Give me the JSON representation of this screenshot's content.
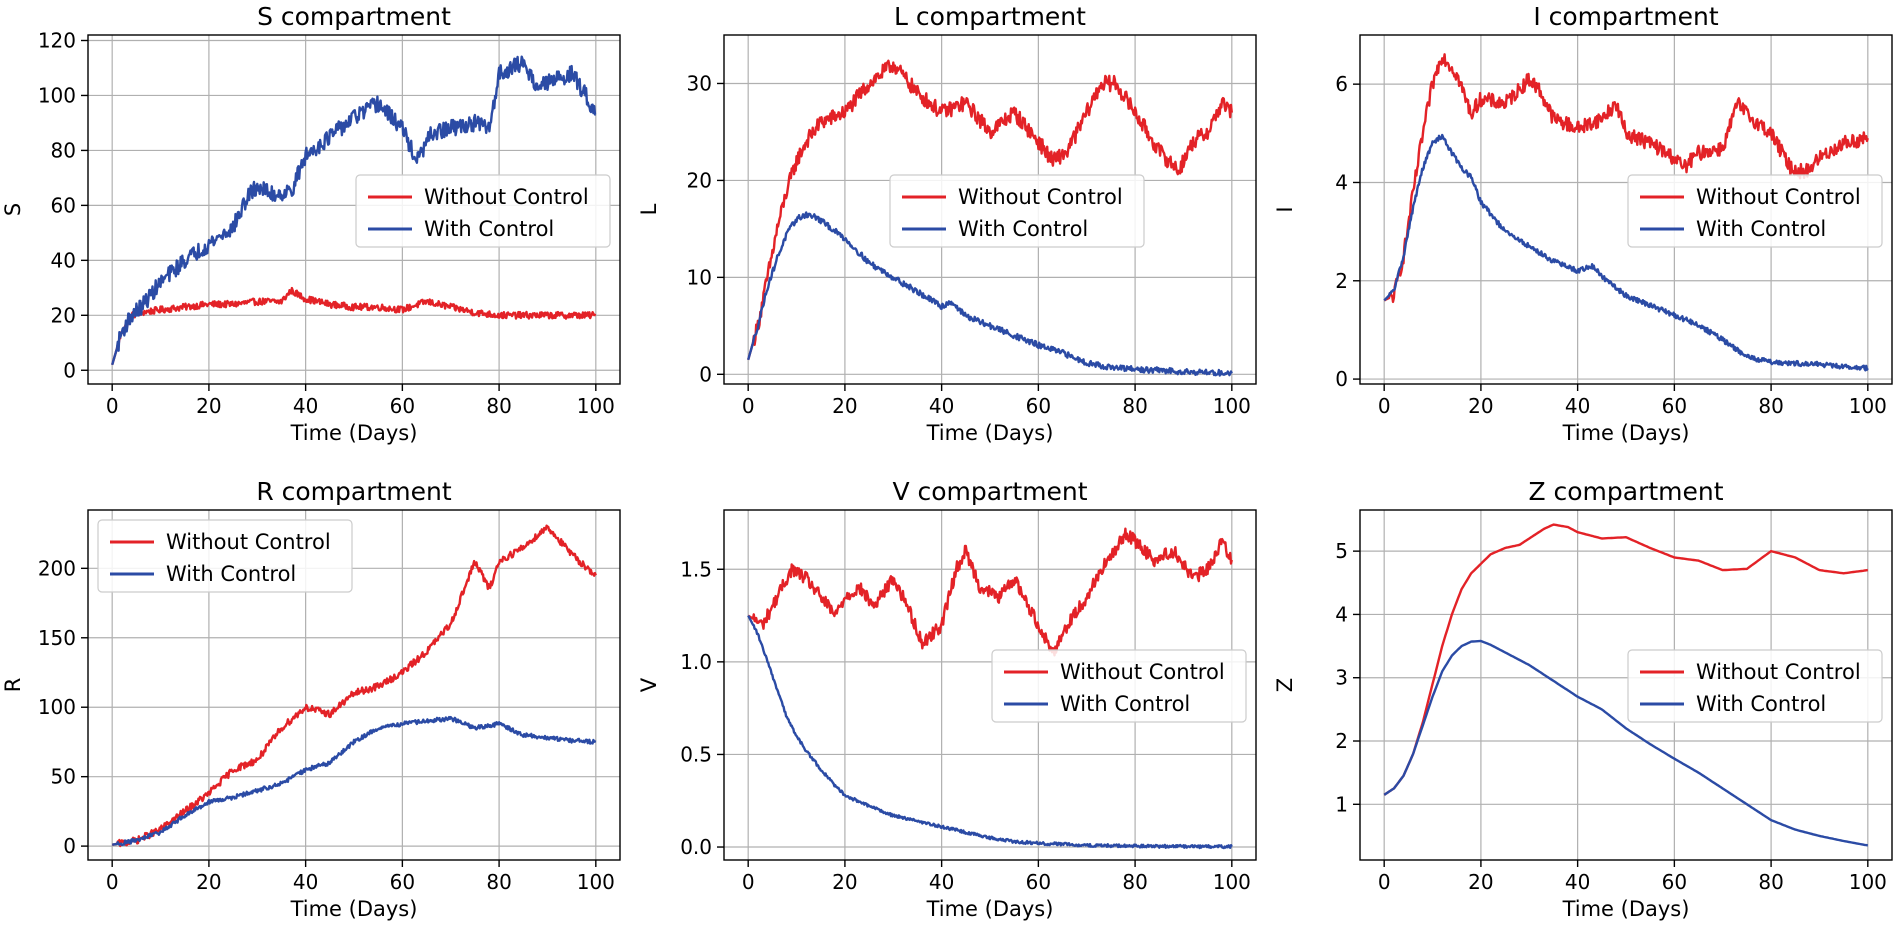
{
  "colors": {
    "without_control": "#e32227",
    "with_control": "#2b4ba5",
    "grid": "#b0b0b0"
  },
  "chart_data": [
    {
      "type": "line",
      "title": "S compartment",
      "xlabel": "Time (Days)",
      "ylabel": "S",
      "xlim": [
        -5,
        105
      ],
      "ylim": [
        -5,
        122
      ],
      "xticks": [
        0,
        20,
        40,
        60,
        80,
        100
      ],
      "xtick_labels": [
        "0",
        "20",
        "40",
        "60",
        "80",
        "100"
      ],
      "yticks": [
        0,
        20,
        40,
        60,
        80,
        100,
        120
      ],
      "ytick_labels": [
        "0",
        "20",
        "40",
        "60",
        "80",
        "100",
        "120"
      ],
      "legend": {
        "position": "center-right",
        "entries": [
          "Without Control",
          "With Control"
        ]
      },
      "noise": [
        1.2,
        3.0
      ],
      "series": [
        {
          "name": "Without Control",
          "x": [
            0,
            2,
            4,
            6,
            10,
            15,
            20,
            25,
            30,
            35,
            37,
            40,
            45,
            50,
            55,
            60,
            65,
            70,
            75,
            80,
            85,
            90,
            95,
            100
          ],
          "y": [
            2,
            14,
            20,
            21,
            22,
            23,
            24,
            24,
            25,
            25,
            29,
            26,
            24,
            23,
            23,
            22,
            25,
            23,
            21,
            20,
            20,
            20,
            20,
            20
          ]
        },
        {
          "name": "With Control",
          "x": [
            0,
            2,
            4,
            6,
            10,
            15,
            20,
            25,
            28,
            30,
            33,
            37,
            40,
            45,
            50,
            55,
            60,
            63,
            66,
            70,
            75,
            78,
            80,
            85,
            88,
            92,
            95,
            98,
            100
          ],
          "y": [
            2,
            14,
            20,
            23,
            32,
            40,
            46,
            52,
            63,
            67,
            64,
            65,
            78,
            85,
            92,
            97,
            88,
            76,
            86,
            88,
            90,
            88,
            108,
            112,
            103,
            106,
            108,
            100,
            93
          ]
        }
      ]
    },
    {
      "type": "line",
      "title": "L compartment",
      "xlabel": "Time (Days)",
      "ylabel": "L",
      "xlim": [
        -5,
        105
      ],
      "ylim": [
        -1,
        35
      ],
      "xticks": [
        0,
        20,
        40,
        60,
        80,
        100
      ],
      "xtick_labels": [
        "0",
        "20",
        "40",
        "60",
        "80",
        "100"
      ],
      "yticks": [
        0,
        10,
        20,
        30
      ],
      "ytick_labels": [
        "0",
        "10",
        "20",
        "30"
      ],
      "legend": {
        "position": "upper-right",
        "entries": [
          "Without Control",
          "With Control"
        ]
      },
      "noise": [
        0.8,
        0.3
      ],
      "series": [
        {
          "name": "Without Control",
          "x": [
            0,
            2,
            4,
            6,
            8,
            10,
            12,
            15,
            20,
            25,
            30,
            35,
            40,
            45,
            50,
            55,
            60,
            63,
            66,
            70,
            73,
            76,
            80,
            85,
            89,
            92,
            95,
            98,
            100
          ],
          "y": [
            1.5,
            5,
            10,
            15,
            19,
            22,
            24,
            26,
            27,
            30,
            32,
            29,
            27,
            28,
            25,
            27,
            24,
            22,
            23,
            27,
            30,
            30,
            27,
            23,
            21,
            24,
            25,
            28,
            27
          ]
        },
        {
          "name": "With Control",
          "x": [
            0,
            2,
            4,
            6,
            8,
            10,
            12,
            14,
            16,
            20,
            25,
            30,
            35,
            40,
            42,
            45,
            50,
            55,
            60,
            65,
            70,
            75,
            80,
            90,
            100
          ],
          "y": [
            1.5,
            5,
            9,
            12,
            14.5,
            16,
            16.5,
            16.2,
            15.5,
            14,
            11.5,
            10,
            8.5,
            7,
            7.5,
            6,
            5,
            4,
            3,
            2.2,
            1.2,
            0.7,
            0.5,
            0.3,
            0.1
          ]
        }
      ]
    },
    {
      "type": "line",
      "title": "I compartment",
      "xlabel": "Time (Days)",
      "ylabel": "I",
      "xlim": [
        -5,
        105
      ],
      "ylim": [
        -0.1,
        7.0
      ],
      "xticks": [
        0,
        20,
        40,
        60,
        80,
        100
      ],
      "xtick_labels": [
        "0",
        "20",
        "40",
        "60",
        "80",
        "100"
      ],
      "yticks": [
        0,
        2,
        4,
        6
      ],
      "ytick_labels": [
        "0",
        "2",
        "4",
        "6"
      ],
      "legend": {
        "position": "center-right",
        "entries": [
          "Without Control",
          "With Control"
        ]
      },
      "noise": [
        0.15,
        0.05
      ],
      "series": [
        {
          "name": "Without Control",
          "x": [
            0,
            2,
            4,
            6,
            8,
            10,
            12,
            15,
            18,
            20,
            25,
            30,
            32,
            35,
            40,
            45,
            48,
            50,
            55,
            60,
            62,
            65,
            70,
            73,
            76,
            80,
            84,
            87,
            90,
            95,
            100
          ],
          "y": [
            1.6,
            1.7,
            2.5,
            3.8,
            5,
            6,
            6.6,
            6.2,
            5.4,
            5.7,
            5.6,
            6.1,
            5.9,
            5.3,
            5.1,
            5.3,
            5.6,
            5,
            4.8,
            4.5,
            4.3,
            4.6,
            4.7,
            5.6,
            5.3,
            5,
            4.3,
            4.2,
            4.5,
            4.8,
            4.9
          ]
        },
        {
          "name": "With Control",
          "x": [
            0,
            2,
            4,
            6,
            8,
            10,
            12,
            14,
            16,
            18,
            20,
            25,
            30,
            35,
            40,
            43,
            46,
            50,
            55,
            60,
            65,
            70,
            75,
            80,
            85,
            90,
            95,
            100
          ],
          "y": [
            1.6,
            1.8,
            2.5,
            3.5,
            4.3,
            4.8,
            4.95,
            4.6,
            4.3,
            4.1,
            3.6,
            3.0,
            2.7,
            2.4,
            2.2,
            2.3,
            2.0,
            1.7,
            1.5,
            1.3,
            1.1,
            0.8,
            0.45,
            0.35,
            0.32,
            0.3,
            0.25,
            0.22
          ]
        }
      ]
    },
    {
      "type": "line",
      "title": "R compartment",
      "xlabel": "Time (Days)",
      "ylabel": "R",
      "xlim": [
        -5,
        105
      ],
      "ylim": [
        -10,
        242
      ],
      "xticks": [
        0,
        20,
        40,
        60,
        80,
        100
      ],
      "xtick_labels": [
        "0",
        "20",
        "40",
        "60",
        "80",
        "100"
      ],
      "yticks": [
        0,
        50,
        100,
        150,
        200
      ],
      "ytick_labels": [
        "0",
        "50",
        "100",
        "150",
        "200"
      ],
      "legend": {
        "position": "upper-left",
        "entries": [
          "Without Control",
          "With Control"
        ]
      },
      "noise": [
        2.5,
        1.5
      ],
      "series": [
        {
          "name": "Without Control",
          "x": [
            0,
            5,
            10,
            15,
            20,
            25,
            30,
            35,
            40,
            45,
            50,
            55,
            60,
            65,
            70,
            75,
            78,
            80,
            85,
            90,
            95,
            100
          ],
          "y": [
            1,
            4,
            12,
            25,
            38,
            55,
            62,
            85,
            100,
            95,
            110,
            115,
            125,
            140,
            160,
            205,
            185,
            205,
            215,
            230,
            210,
            195
          ]
        },
        {
          "name": "With Control",
          "x": [
            0,
            5,
            10,
            15,
            20,
            25,
            30,
            35,
            40,
            45,
            50,
            55,
            60,
            65,
            70,
            75,
            80,
            85,
            90,
            95,
            100
          ],
          "y": [
            1,
            4,
            10,
            22,
            32,
            35,
            40,
            45,
            55,
            60,
            75,
            85,
            88,
            90,
            92,
            85,
            88,
            80,
            78,
            76,
            75
          ]
        }
      ]
    },
    {
      "type": "line",
      "title": "V compartment",
      "xlabel": "Time (Days)",
      "ylabel": "V",
      "xlim": [
        -5,
        105
      ],
      "ylim": [
        -0.07,
        1.82
      ],
      "xticks": [
        0,
        20,
        40,
        60,
        80,
        100
      ],
      "xtick_labels": [
        "0",
        "20",
        "40",
        "60",
        "80",
        "100"
      ],
      "yticks": [
        0,
        0.5,
        1.0,
        1.5
      ],
      "ytick_labels": [
        "0.0",
        "0.5",
        "1.0",
        "1.5"
      ],
      "legend": {
        "position": "center-right",
        "entries": [
          "Without Control",
          "With Control"
        ]
      },
      "noise": [
        0.035,
        0.008
      ],
      "series": [
        {
          "name": "Without Control",
          "x": [
            0,
            3,
            6,
            9,
            12,
            15,
            18,
            20,
            23,
            26,
            30,
            33,
            36,
            40,
            43,
            45,
            48,
            52,
            55,
            58,
            60,
            63,
            66,
            70,
            73,
            76,
            78,
            80,
            84,
            88,
            92,
            95,
            98,
            100
          ],
          "y": [
            1.25,
            1.2,
            1.35,
            1.5,
            1.45,
            1.35,
            1.25,
            1.35,
            1.4,
            1.3,
            1.45,
            1.3,
            1.1,
            1.2,
            1.5,
            1.6,
            1.4,
            1.35,
            1.45,
            1.3,
            1.2,
            1.05,
            1.2,
            1.35,
            1.5,
            1.6,
            1.7,
            1.65,
            1.55,
            1.6,
            1.45,
            1.5,
            1.65,
            1.55
          ]
        },
        {
          "name": "With Control",
          "x": [
            0,
            2,
            4,
            6,
            8,
            10,
            12,
            15,
            18,
            20,
            25,
            30,
            35,
            40,
            45,
            50,
            55,
            60,
            65,
            70,
            80,
            90,
            100
          ],
          "y": [
            1.25,
            1.15,
            1.0,
            0.85,
            0.7,
            0.6,
            0.52,
            0.42,
            0.33,
            0.28,
            0.22,
            0.17,
            0.14,
            0.11,
            0.08,
            0.05,
            0.03,
            0.02,
            0.015,
            0.01,
            0.005,
            0.003,
            0.002
          ]
        }
      ]
    },
    {
      "type": "line",
      "title": "Z compartment",
      "xlabel": "Time (Days)",
      "ylabel": "Z",
      "xlim": [
        -5,
        105
      ],
      "ylim": [
        0.12,
        5.65
      ],
      "xticks": [
        0,
        20,
        40,
        60,
        80,
        100
      ],
      "xtick_labels": [
        "0",
        "20",
        "40",
        "60",
        "80",
        "100"
      ],
      "yticks": [
        1,
        2,
        3,
        4,
        5
      ],
      "ytick_labels": [
        "1",
        "2",
        "3",
        "4",
        "5"
      ],
      "legend": {
        "position": "center-right",
        "entries": [
          "Without Control",
          "With Control"
        ]
      },
      "noise": [
        0,
        0
      ],
      "series": [
        {
          "name": "Without Control",
          "x": [
            0,
            2,
            4,
            6,
            8,
            10,
            12,
            14,
            16,
            18,
            20,
            22,
            25,
            28,
            30,
            33,
            35,
            38,
            40,
            45,
            50,
            55,
            60,
            65,
            70,
            75,
            80,
            85,
            90,
            95,
            100
          ],
          "y": [
            1.15,
            1.25,
            1.45,
            1.8,
            2.3,
            2.9,
            3.5,
            4.0,
            4.4,
            4.65,
            4.8,
            4.95,
            5.05,
            5.1,
            5.2,
            5.35,
            5.42,
            5.38,
            5.3,
            5.2,
            5.22,
            5.05,
            4.9,
            4.85,
            4.7,
            4.72,
            5.0,
            4.9,
            4.7,
            4.65,
            4.7
          ]
        },
        {
          "name": "With Control",
          "x": [
            0,
            2,
            4,
            6,
            8,
            10,
            12,
            14,
            16,
            18,
            20,
            22,
            25,
            30,
            35,
            40,
            45,
            50,
            55,
            60,
            65,
            70,
            75,
            80,
            85,
            90,
            95,
            100
          ],
          "y": [
            1.15,
            1.25,
            1.45,
            1.8,
            2.25,
            2.7,
            3.1,
            3.35,
            3.5,
            3.57,
            3.58,
            3.52,
            3.4,
            3.2,
            2.95,
            2.7,
            2.5,
            2.2,
            1.95,
            1.72,
            1.5,
            1.25,
            1.0,
            0.75,
            0.6,
            0.5,
            0.42,
            0.35
          ]
        }
      ]
    }
  ]
}
